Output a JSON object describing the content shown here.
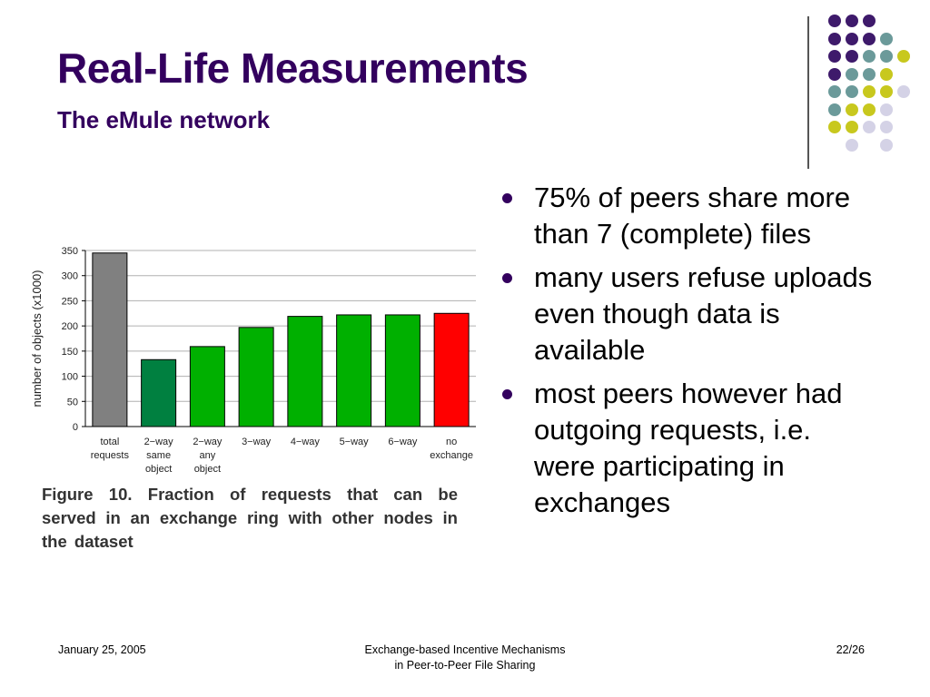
{
  "slide": {
    "title": "Real-Life Measurements",
    "subtitle": "The eMule network",
    "bullets": [
      "75% of peers share more than 7 (complete) files",
      "many users refuse uploads even though data is available",
      "most peers however had outgoing requests, i.e. were participating in exchanges"
    ],
    "caption": "Figure 10. Fraction of requests that can be served in an exchange ring with other nodes in the dataset"
  },
  "footer": {
    "date": "January 25, 2005",
    "center_line1": "Exchange-based Incentive Mechanisms",
    "center_line2": "in Peer-to-Peer File Sharing",
    "page": "22/26"
  },
  "colors": {
    "title": "#33005e",
    "purple": "#3e1a6b",
    "teal": "#6b9a9a",
    "yellow": "#c8c81e",
    "lavender": "#d4d2e6",
    "bar_gray": "#808080",
    "bar_darkgreen": "#008040",
    "bar_green": "#00b000",
    "bar_red": "#ff0000"
  },
  "chart_data": {
    "type": "bar",
    "ylabel": "number of objects (x1000)",
    "ylim": [
      0,
      350
    ],
    "yticks": [
      0,
      50,
      100,
      150,
      200,
      250,
      300,
      350
    ],
    "grid": true,
    "categories": [
      [
        "total",
        "requests"
      ],
      [
        "2−way",
        "same",
        "object"
      ],
      [
        "2−way",
        "any",
        "object"
      ],
      [
        "3−way"
      ],
      [
        "4−way"
      ],
      [
        "5−way"
      ],
      [
        "6−way"
      ],
      [
        "no",
        "exchange"
      ]
    ],
    "values": [
      345,
      133,
      159,
      197,
      219,
      222,
      222,
      225
    ],
    "bar_colors": [
      "#808080",
      "#008040",
      "#00b000",
      "#00b000",
      "#00b000",
      "#00b000",
      "#00b000",
      "#ff0000"
    ]
  }
}
